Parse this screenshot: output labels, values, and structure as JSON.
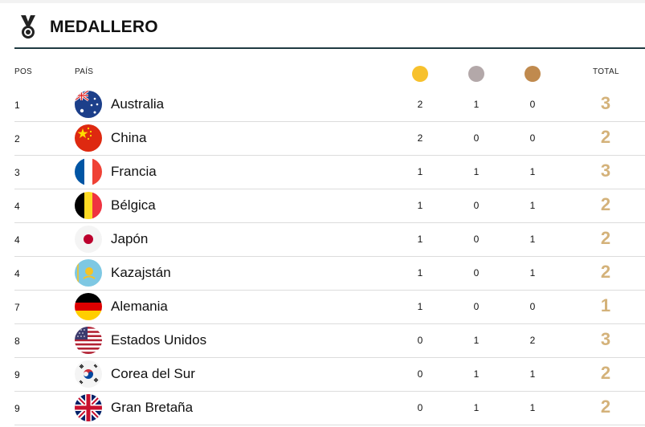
{
  "header": {
    "title": "MEDALLERO",
    "icon": "medal-icon"
  },
  "columns": {
    "pos": "POS",
    "country": "PAÍS",
    "total": "TOTAL"
  },
  "colors": {
    "gold": "#f7c12d",
    "silver": "#b3a8a9",
    "bronze": "#c08a4e",
    "total": "#d4b27a",
    "rule": "#1f3a42"
  },
  "rows": [
    {
      "pos": "1",
      "country": "Australia",
      "flag": "australia-flag-icon",
      "gold": "2",
      "silver": "1",
      "bronze": "0",
      "total": "3"
    },
    {
      "pos": "2",
      "country": "China",
      "flag": "china-flag-icon",
      "gold": "2",
      "silver": "0",
      "bronze": "0",
      "total": "2"
    },
    {
      "pos": "3",
      "country": "Francia",
      "flag": "france-flag-icon",
      "gold": "1",
      "silver": "1",
      "bronze": "1",
      "total": "3"
    },
    {
      "pos": "4",
      "country": "Bélgica",
      "flag": "belgium-flag-icon",
      "gold": "1",
      "silver": "0",
      "bronze": "1",
      "total": "2"
    },
    {
      "pos": "4",
      "country": "Japón",
      "flag": "japan-flag-icon",
      "gold": "1",
      "silver": "0",
      "bronze": "1",
      "total": "2"
    },
    {
      "pos": "4",
      "country": "Kazajstán",
      "flag": "kazakhstan-flag-icon",
      "gold": "1",
      "silver": "0",
      "bronze": "1",
      "total": "2"
    },
    {
      "pos": "7",
      "country": "Alemania",
      "flag": "germany-flag-icon",
      "gold": "1",
      "silver": "0",
      "bronze": "0",
      "total": "1"
    },
    {
      "pos": "8",
      "country": "Estados Unidos",
      "flag": "usa-flag-icon",
      "gold": "0",
      "silver": "1",
      "bronze": "2",
      "total": "3"
    },
    {
      "pos": "9",
      "country": "Corea del Sur",
      "flag": "south-korea-flag-icon",
      "gold": "0",
      "silver": "1",
      "bronze": "1",
      "total": "2"
    },
    {
      "pos": "9",
      "country": "Gran Bretaña",
      "flag": "great-britain-flag-icon",
      "gold": "0",
      "silver": "1",
      "bronze": "1",
      "total": "2"
    }
  ]
}
